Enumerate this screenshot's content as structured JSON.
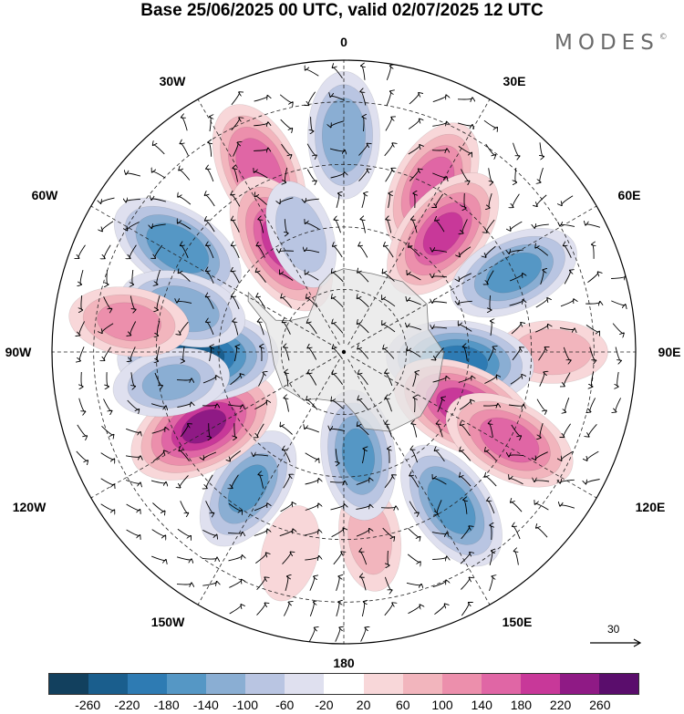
{
  "title": "Base 25/06/2025 00 UTC, valid 02/07/2025 12 UTC",
  "brand": "MODES",
  "brand_mark": "©",
  "longitude_labels": {
    "top": "0",
    "bottom": "180",
    "left": "90W",
    "right": "90E",
    "w30": "30W",
    "e30": "30E",
    "w60": "60W",
    "e60": "60E",
    "w120": "120W",
    "e120": "120E",
    "w150": "150W",
    "e150": "150E"
  },
  "vector_scale": "30",
  "projection": "south-polar-stereographic",
  "colorbar": {
    "colors": [
      "#12405e",
      "#1a5e8d",
      "#2e7bb3",
      "#5597c5",
      "#8aaed3",
      "#b9c5e2",
      "#dfe0ef",
      "#ffffff",
      "#f8d7d9",
      "#f2b5bd",
      "#ec8fac",
      "#e066a5",
      "#c83899",
      "#8f1a85",
      "#5a0d6c"
    ],
    "ticks": [
      "-260",
      "-220",
      "-180",
      "-140",
      "-100",
      "-60",
      "-20",
      "20",
      "60",
      "100",
      "140",
      "180",
      "220",
      "260"
    ]
  },
  "anomaly_centers": [
    {
      "lon": 0,
      "lat": -38,
      "value": -150
    },
    {
      "lon": -25,
      "lat": -42,
      "value": 190
    },
    {
      "lon": -30,
      "lat": -60,
      "value": 210
    },
    {
      "lon": -58,
      "lat": -43,
      "value": -190
    },
    {
      "lon": -20,
      "lat": -60,
      "value": -100
    },
    {
      "lon": 28,
      "lat": -45,
      "value": 180
    },
    {
      "lon": 40,
      "lat": -53,
      "value": 200
    },
    {
      "lon": 65,
      "lat": -45,
      "value": -170
    },
    {
      "lon": 90,
      "lat": -40,
      "value": 100
    },
    {
      "lon": 95,
      "lat": -62,
      "value": -210
    },
    {
      "lon": 115,
      "lat": -58,
      "value": 220
    },
    {
      "lon": 118,
      "lat": -45,
      "value": 180
    },
    {
      "lon": 145,
      "lat": -45,
      "value": -180
    },
    {
      "lon": 172,
      "lat": -45,
      "value": 90
    },
    {
      "lon": 172,
      "lat": -65,
      "value": -160
    },
    {
      "lon": -145,
      "lat": -50,
      "value": -160
    },
    {
      "lon": -118,
      "lat": -52,
      "value": 240
    },
    {
      "lon": -92,
      "lat": -55,
      "value": -250
    },
    {
      "lon": -75,
      "lat": -50,
      "value": -150
    },
    {
      "lon": -100,
      "lat": -48,
      "value": -120
    },
    {
      "lon": -82,
      "lat": -38,
      "value": 130
    },
    {
      "lon": -165,
      "lat": -40,
      "value": 60
    }
  ]
}
